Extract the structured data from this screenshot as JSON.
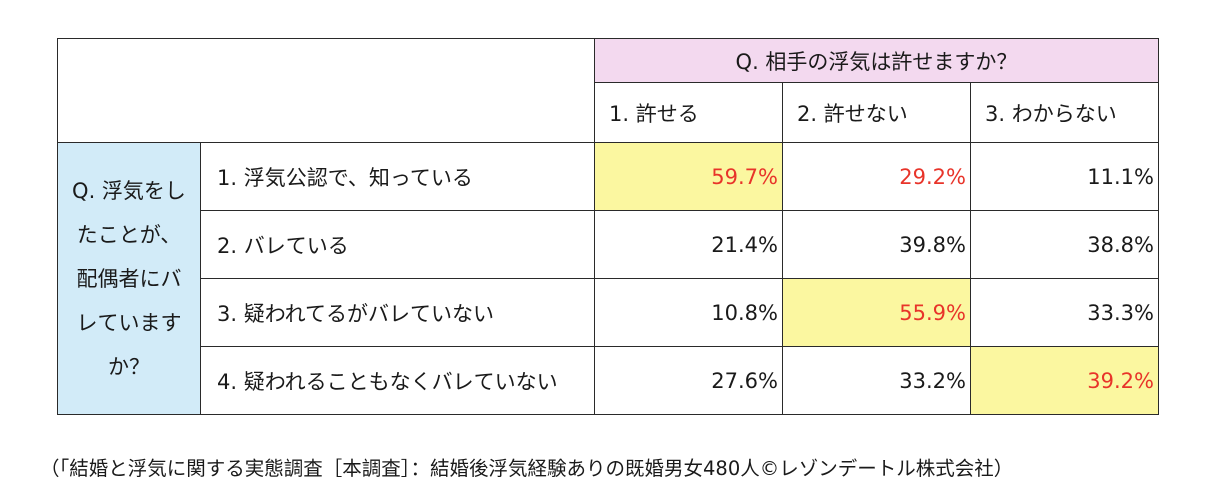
{
  "chart_data": {
    "type": "table",
    "column_header": "Q. 相手の浮気は許せますか？",
    "columns": [
      "1. 許せる",
      "2. 許せない",
      "3. わからない"
    ],
    "row_header": "Q. 浮気をしたことが、配偶者にバレていますか？",
    "row_header_lines": [
      "Q. 浮気をし",
      "たことが、",
      "配偶者にバ",
      "レています",
      "か？"
    ],
    "rows": [
      {
        "label": "1. 浮気公認で、知っている",
        "values": [
          "59.7%",
          "29.2%",
          "11.1%"
        ]
      },
      {
        "label": "2. バレている",
        "values": [
          "21.4%",
          "39.8%",
          "38.8%"
        ]
      },
      {
        "label": "3. 疑われてるがバレていない",
        "values": [
          "10.8%",
          "55.9%",
          "33.3%"
        ]
      },
      {
        "label": "4. 疑われることもなくバレていない",
        "values": [
          "27.6%",
          "33.2%",
          "39.2%"
        ]
      }
    ],
    "numeric_values": [
      [
        59.7,
        29.2,
        11.1
      ],
      [
        21.4,
        39.8,
        38.8
      ],
      [
        10.8,
        55.9,
        33.3
      ],
      [
        27.6,
        33.2,
        39.2
      ]
    ],
    "highlighted_cells": [
      [
        0,
        0
      ],
      [
        2,
        1
      ],
      [
        3,
        2
      ]
    ],
    "red_text_cells": [
      [
        0,
        0
      ],
      [
        0,
        1
      ],
      [
        2,
        1
      ],
      [
        3,
        2
      ]
    ],
    "colors": {
      "header_pink": "#f3d9ef",
      "row_header_blue": "#d2ebf8",
      "highlight_yellow": "#fbf7a0",
      "emphasis_red": "#e8342a"
    },
    "footnote": "（「結婚と浮気に関する実態調査［本調査］：結婚後浮気経験ありの既婚男女480人©レゾンデートル株式会社）"
  }
}
